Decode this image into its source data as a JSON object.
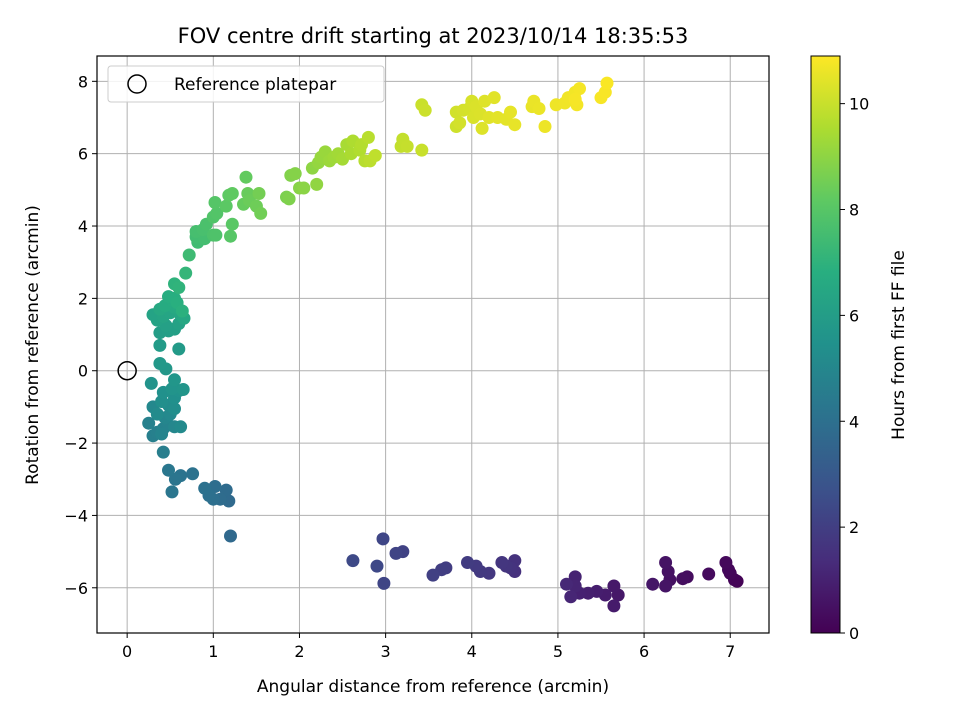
{
  "chart_data": {
    "type": "scatter",
    "title": "FOV centre drift starting at 2023/10/14 18:35:53",
    "xlabel": "Angular distance from reference (arcmin)",
    "ylabel": "Rotation from reference (arcmin)",
    "xlim": [
      -0.35,
      7.45
    ],
    "ylim": [
      -7.25,
      8.7
    ],
    "xticks": [
      0,
      1,
      2,
      3,
      4,
      5,
      6,
      7
    ],
    "yticks": [
      -6,
      -4,
      -2,
      0,
      2,
      4,
      6,
      8
    ],
    "grid": true,
    "legend": {
      "position": "top-left",
      "entries": [
        "Reference platepar"
      ]
    },
    "reference_point": {
      "x": 0,
      "y": 0,
      "label": "Reference platepar"
    },
    "colorbar": {
      "label": "Hours from first FF file",
      "range": [
        0,
        10.9
      ],
      "ticks": [
        0,
        2,
        4,
        6,
        8,
        10
      ],
      "colormap": "viridis"
    },
    "points": [
      [
        7.08,
        -5.82,
        0.05
      ],
      [
        7.05,
        -5.78,
        0.1
      ],
      [
        7.0,
        -5.6,
        0.15
      ],
      [
        6.98,
        -5.5,
        0.2
      ],
      [
        6.95,
        -5.3,
        0.25
      ],
      [
        6.75,
        -5.62,
        0.3
      ],
      [
        6.5,
        -5.7,
        0.35
      ],
      [
        6.45,
        -5.75,
        0.4
      ],
      [
        6.3,
        -5.78,
        0.45
      ],
      [
        6.28,
        -5.55,
        0.5
      ],
      [
        6.25,
        -5.3,
        0.55
      ],
      [
        6.25,
        -5.95,
        0.6
      ],
      [
        6.1,
        -5.9,
        0.65
      ],
      [
        5.7,
        -6.2,
        0.7
      ],
      [
        5.65,
        -5.95,
        0.75
      ],
      [
        5.65,
        -6.5,
        0.8
      ],
      [
        5.55,
        -6.2,
        0.85
      ],
      [
        5.45,
        -6.1,
        0.9
      ],
      [
        5.35,
        -6.15,
        0.95
      ],
      [
        5.25,
        -6.15,
        1.0
      ],
      [
        5.2,
        -5.7,
        1.05
      ],
      [
        5.2,
        -5.95,
        1.1
      ],
      [
        5.15,
        -6.25,
        1.15
      ],
      [
        5.1,
        -5.9,
        1.2
      ],
      [
        4.5,
        -5.55,
        1.5
      ],
      [
        4.5,
        -5.25,
        1.55
      ],
      [
        4.45,
        -5.45,
        1.6
      ],
      [
        4.4,
        -5.4,
        1.65
      ],
      [
        4.35,
        -5.3,
        1.7
      ],
      [
        4.2,
        -5.6,
        1.75
      ],
      [
        4.1,
        -5.55,
        1.8
      ],
      [
        4.05,
        -5.4,
        1.85
      ],
      [
        3.95,
        -5.3,
        1.9
      ],
      [
        3.7,
        -5.45,
        1.95
      ],
      [
        3.65,
        -5.5,
        2.0
      ],
      [
        3.55,
        -5.65,
        2.05
      ],
      [
        3.2,
        -5.0,
        2.15
      ],
      [
        3.12,
        -5.05,
        2.2
      ],
      [
        2.98,
        -5.88,
        2.25
      ],
      [
        2.97,
        -4.65,
        2.3
      ],
      [
        2.9,
        -5.4,
        2.35
      ],
      [
        2.62,
        -5.25,
        2.4
      ],
      [
        1.2,
        -4.57,
        3.7
      ],
      [
        1.18,
        -3.6,
        3.75
      ],
      [
        1.15,
        -3.3,
        3.8
      ],
      [
        1.08,
        -3.55,
        3.85
      ],
      [
        1.02,
        -3.2,
        3.9
      ],
      [
        1.0,
        -3.55,
        3.95
      ],
      [
        0.95,
        -3.45,
        4.0
      ],
      [
        0.9,
        -3.25,
        4.05
      ],
      [
        0.76,
        -2.85,
        4.1
      ],
      [
        0.62,
        -2.9,
        4.15
      ],
      [
        0.56,
        -3.0,
        4.2
      ],
      [
        0.52,
        -3.35,
        4.25
      ],
      [
        0.48,
        -2.75,
        4.3
      ],
      [
        0.42,
        -2.25,
        4.6
      ],
      [
        0.3,
        -1.8,
        4.65
      ],
      [
        0.35,
        -1.7,
        4.7
      ],
      [
        0.25,
        -1.45,
        4.75
      ],
      [
        0.42,
        -1.6,
        4.8
      ],
      [
        0.48,
        -1.5,
        4.85
      ],
      [
        0.4,
        -1.75,
        4.9
      ],
      [
        0.44,
        -1.3,
        4.95
      ],
      [
        0.55,
        -1.55,
        5.0
      ],
      [
        0.3,
        -1.0,
        5.05
      ],
      [
        0.5,
        -1.2,
        5.1
      ],
      [
        0.62,
        -1.55,
        5.15
      ],
      [
        0.35,
        -1.2,
        5.2
      ],
      [
        0.48,
        -0.95,
        5.25
      ],
      [
        0.55,
        -1.05,
        5.3
      ],
      [
        0.4,
        -0.85,
        5.35
      ],
      [
        0.55,
        -0.75,
        5.4
      ],
      [
        0.42,
        -0.6,
        5.45
      ],
      [
        0.6,
        -0.55,
        5.5
      ],
      [
        0.28,
        -0.35,
        5.55
      ],
      [
        0.52,
        -0.5,
        5.6
      ],
      [
        0.65,
        -0.52,
        5.65
      ],
      [
        0.55,
        -0.25,
        5.7
      ],
      [
        0.45,
        0.05,
        5.75
      ],
      [
        0.38,
        0.2,
        5.8
      ],
      [
        0.6,
        0.6,
        5.85
      ],
      [
        0.38,
        0.7,
        5.9
      ],
      [
        0.38,
        1.05,
        6.0
      ],
      [
        0.48,
        1.1,
        6.05
      ],
      [
        0.55,
        1.15,
        6.1
      ],
      [
        0.45,
        1.25,
        6.15
      ],
      [
        0.6,
        1.3,
        6.2
      ],
      [
        0.35,
        1.4,
        6.25
      ],
      [
        0.3,
        1.55,
        6.3
      ],
      [
        0.42,
        1.5,
        6.35
      ],
      [
        0.5,
        1.6,
        6.4
      ],
      [
        0.62,
        1.55,
        6.45
      ],
      [
        0.66,
        1.45,
        6.5
      ],
      [
        0.38,
        1.7,
        6.55
      ],
      [
        0.55,
        1.75,
        6.6
      ],
      [
        0.44,
        1.8,
        6.65
      ],
      [
        0.52,
        1.95,
        6.7
      ],
      [
        0.48,
        2.05,
        6.75
      ],
      [
        0.55,
        2.0,
        6.8
      ],
      [
        0.58,
        1.88,
        6.85
      ],
      [
        0.64,
        1.65,
        6.9
      ],
      [
        0.55,
        2.4,
        7.0
      ],
      [
        0.6,
        2.3,
        7.05
      ],
      [
        0.68,
        2.7,
        7.15
      ],
      [
        0.72,
        3.2,
        7.4
      ],
      [
        0.82,
        3.55,
        7.45
      ],
      [
        0.8,
        3.7,
        7.5
      ],
      [
        0.9,
        3.65,
        7.55
      ],
      [
        0.8,
        3.85,
        7.6
      ],
      [
        0.88,
        3.9,
        7.65
      ],
      [
        0.92,
        4.05,
        7.7
      ],
      [
        1.0,
        3.75,
        7.75
      ],
      [
        1.03,
        3.75,
        7.8
      ],
      [
        1.0,
        4.25,
        7.85
      ],
      [
        1.04,
        4.35,
        7.9
      ],
      [
        1.02,
        4.65,
        7.95
      ],
      [
        1.2,
        3.72,
        8.0
      ],
      [
        1.22,
        4.05,
        8.05
      ],
      [
        1.15,
        4.55,
        8.1
      ],
      [
        1.18,
        4.85,
        8.15
      ],
      [
        1.22,
        4.9,
        8.2
      ],
      [
        1.38,
        5.35,
        8.25
      ],
      [
        1.35,
        4.6,
        8.3
      ],
      [
        1.4,
        4.9,
        8.35
      ],
      [
        1.42,
        4.7,
        8.4
      ],
      [
        1.5,
        4.55,
        8.45
      ],
      [
        1.55,
        4.35,
        8.5
      ],
      [
        1.53,
        4.9,
        8.55
      ],
      [
        1.85,
        4.8,
        8.7
      ],
      [
        1.88,
        4.75,
        8.75
      ],
      [
        1.9,
        5.4,
        8.8
      ],
      [
        1.95,
        5.45,
        8.85
      ],
      [
        2.0,
        5.05,
        8.9
      ],
      [
        2.05,
        5.05,
        8.95
      ],
      [
        2.15,
        5.6,
        9.0
      ],
      [
        2.2,
        5.15,
        9.05
      ],
      [
        2.22,
        5.75,
        9.1
      ],
      [
        2.25,
        5.9,
        9.15
      ],
      [
        2.3,
        6.05,
        9.2
      ],
      [
        2.35,
        5.8,
        9.25
      ],
      [
        2.4,
        5.9,
        9.3
      ],
      [
        2.45,
        6.0,
        9.35
      ],
      [
        2.5,
        5.85,
        9.4
      ],
      [
        2.55,
        6.25,
        9.45
      ],
      [
        2.6,
        6.0,
        9.5
      ],
      [
        2.62,
        6.35,
        9.55
      ],
      [
        2.7,
        6.1,
        9.6
      ],
      [
        2.72,
        6.25,
        9.65
      ],
      [
        2.76,
        5.8,
        9.7
      ],
      [
        2.8,
        6.45,
        9.75
      ],
      [
        2.82,
        5.8,
        9.8
      ],
      [
        2.88,
        5.95,
        9.85
      ],
      [
        3.18,
        6.2,
        9.9
      ],
      [
        3.2,
        6.4,
        9.92
      ],
      [
        3.25,
        6.2,
        9.95
      ],
      [
        3.42,
        6.1,
        10.0
      ],
      [
        3.42,
        7.35,
        10.02
      ],
      [
        3.46,
        7.2,
        10.05
      ],
      [
        3.82,
        6.75,
        10.1
      ],
      [
        3.82,
        7.15,
        10.15
      ],
      [
        3.86,
        6.85,
        10.18
      ],
      [
        3.9,
        7.2,
        10.2
      ],
      [
        3.97,
        7.25,
        10.22
      ],
      [
        4.0,
        7.45,
        10.25
      ],
      [
        4.02,
        7.0,
        10.28
      ],
      [
        4.05,
        7.3,
        10.3
      ],
      [
        4.1,
        7.1,
        10.32
      ],
      [
        4.12,
        6.7,
        10.35
      ],
      [
        4.15,
        7.45,
        10.38
      ],
      [
        4.2,
        7.0,
        10.4
      ],
      [
        4.26,
        7.55,
        10.42
      ],
      [
        4.3,
        7.0,
        10.45
      ],
      [
        4.4,
        6.95,
        10.48
      ],
      [
        4.45,
        7.15,
        10.5
      ],
      [
        4.5,
        6.8,
        10.52
      ],
      [
        4.7,
        7.3,
        10.55
      ],
      [
        4.72,
        7.45,
        10.58
      ],
      [
        4.78,
        7.25,
        10.6
      ],
      [
        4.85,
        6.75,
        10.62
      ],
      [
        4.98,
        7.35,
        10.65
      ],
      [
        5.08,
        7.4,
        10.68
      ],
      [
        5.12,
        7.55,
        10.7
      ],
      [
        5.2,
        7.7,
        10.72
      ],
      [
        5.22,
        7.35,
        10.74
      ],
      [
        5.25,
        7.8,
        10.76
      ],
      [
        5.2,
        7.5,
        10.78
      ],
      [
        5.5,
        7.55,
        10.8
      ],
      [
        5.55,
        7.7,
        10.82
      ],
      [
        5.57,
        7.95,
        10.84
      ]
    ]
  }
}
